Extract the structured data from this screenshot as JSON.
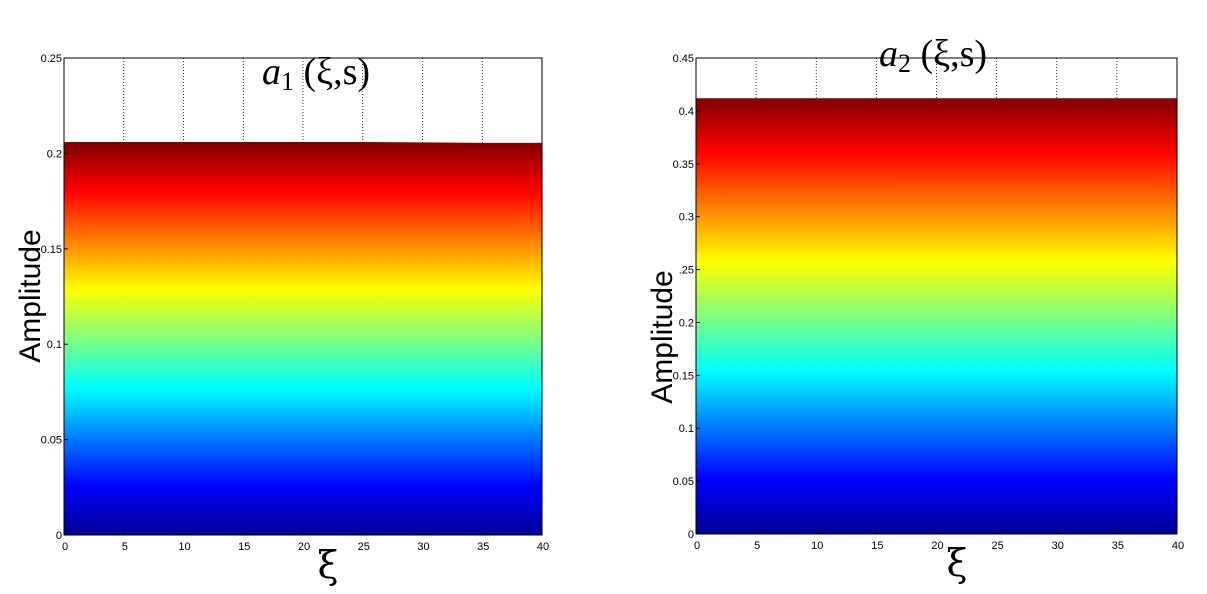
{
  "chart_data": [
    {
      "type": "area",
      "title": {
        "var": "a",
        "sub": "1",
        "args": " (ξ,s)"
      },
      "xlabel": "ξ",
      "ylabel": "Amplitude",
      "xlim": [
        0,
        40
      ],
      "ylim": [
        0,
        0.25
      ],
      "xticks": [
        0,
        5,
        10,
        15,
        20,
        25,
        30,
        35,
        40
      ],
      "yticks": [
        0,
        0.05,
        0.1,
        0.15,
        0.2,
        0.25
      ],
      "ytick_labels": [
        "0",
        "0.05",
        "0.1",
        "0.15",
        "0.2",
        "0.25"
      ],
      "grid": true,
      "colormap": "jet",
      "x": [
        0,
        5,
        10,
        15,
        20,
        25,
        30,
        35,
        40
      ],
      "y": [
        0.206,
        0.206,
        0.206,
        0.206,
        0.206,
        0.206,
        0.2058,
        0.2055,
        0.2055
      ]
    },
    {
      "type": "area",
      "title": {
        "var": "a",
        "sub": "2",
        "args": " (ξ,s)"
      },
      "xlabel": "ξ",
      "ylabel": "Amplitude",
      "xlim": [
        0,
        40
      ],
      "ylim": [
        0,
        0.45
      ],
      "xticks": [
        0,
        5,
        10,
        15,
        20,
        25,
        30,
        35,
        40
      ],
      "yticks": [
        0,
        0.05,
        0.1,
        0.15,
        0.2,
        0.25,
        0.3,
        0.35,
        0.4,
        0.45
      ],
      "ytick_labels": [
        "0",
        "0.05",
        "0.1",
        "0.15",
        "0.2",
        ".25",
        "0.3",
        "0.35",
        "0.4",
        "0.45"
      ],
      "grid": true,
      "colormap": "jet",
      "x": [
        0,
        5,
        10,
        15,
        20,
        25,
        30,
        35,
        40
      ],
      "y": [
        0.412,
        0.412,
        0.412,
        0.412,
        0.412,
        0.412,
        0.412,
        0.412,
        0.412
      ]
    }
  ]
}
